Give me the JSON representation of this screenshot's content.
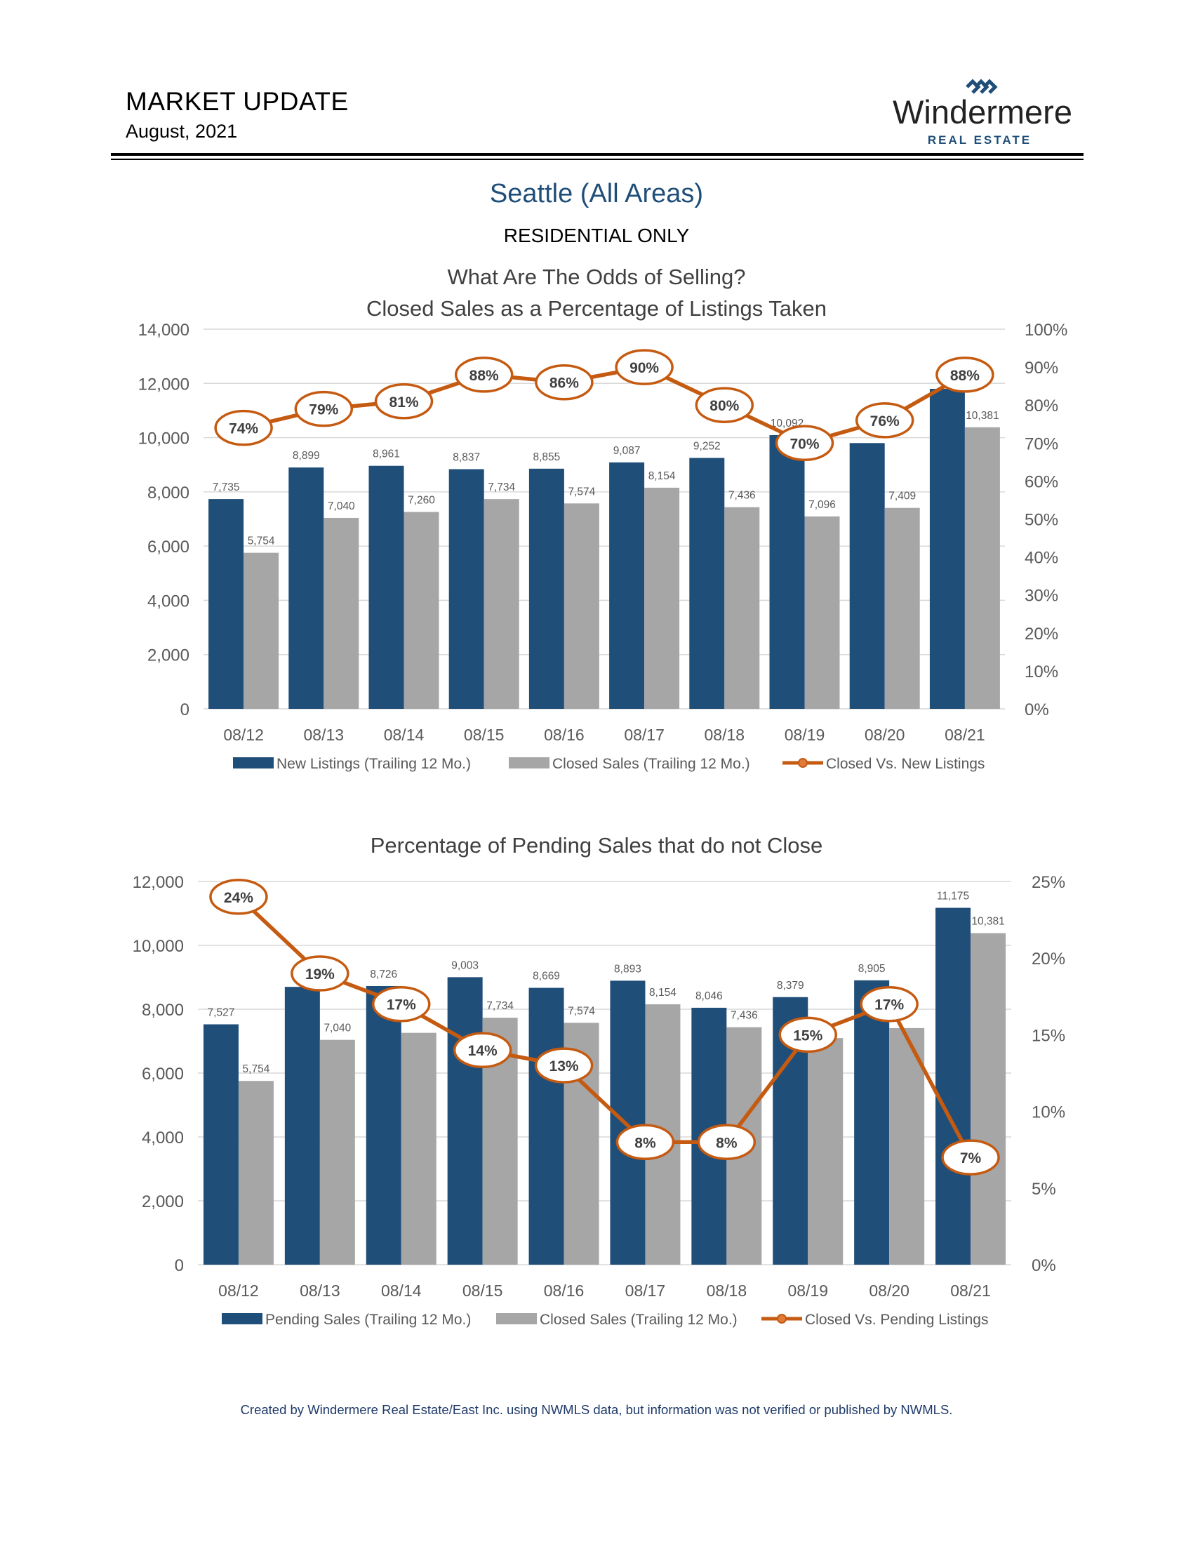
{
  "header": {
    "title": "MARKET UPDATE",
    "date": "August, 2021",
    "logo": {
      "name": "Windermere",
      "tagline": "REAL ESTATE",
      "icon": "windermere-chevron-logo"
    }
  },
  "region": {
    "title": "Seattle (All Areas)",
    "subtitle": "RESIDENTIAL ONLY"
  },
  "colors": {
    "blue": "#1f4e79",
    "gray": "#a6a6a6",
    "orange": "#c55a11",
    "title_blue": "#1f4e79"
  },
  "footer": "Created by Windermere Real Estate/East Inc. using NWMLS data, but information was not verified or published by NWMLS.",
  "chart_data": [
    {
      "type": "bar",
      "title_lines": [
        "What Are The Odds of Selling?",
        "Closed Sales as a Percentage of Listings Taken"
      ],
      "categories": [
        "08/12",
        "08/13",
        "08/14",
        "08/15",
        "08/16",
        "08/17",
        "08/18",
        "08/19",
        "08/20",
        "08/21"
      ],
      "ylim": [
        0,
        14000
      ],
      "yticks": [
        "0",
        "2,000",
        "4,000",
        "6,000",
        "8,000",
        "10,000",
        "12,000",
        "14,000"
      ],
      "y2lim": [
        0,
        100
      ],
      "y2ticks": [
        "0%",
        "10%",
        "20%",
        "30%",
        "40%",
        "50%",
        "60%",
        "70%",
        "80%",
        "90%",
        "100%"
      ],
      "legend_position": "bottom",
      "series": [
        {
          "name": "New Listings (Trailing 12 Mo.)",
          "kind": "bar",
          "color": "#1f4e79",
          "values": [
            7735,
            8899,
            8961,
            8837,
            8855,
            9087,
            9252,
            10092,
            9800,
            11800
          ],
          "labels": [
            "7,735",
            "8,899",
            "8,961",
            "8,837",
            "8,855",
            "9,087",
            "9,252",
            "10,092",
            "",
            ""
          ]
        },
        {
          "name": "Closed Sales (Trailing 12 Mo.)",
          "kind": "bar",
          "color": "#a6a6a6",
          "values": [
            5754,
            7040,
            7260,
            7734,
            7574,
            8154,
            7436,
            7096,
            7409,
            10381
          ],
          "labels": [
            "5,754",
            "7,040",
            "7,260",
            "7,734",
            "7,574",
            "8,154",
            "7,436",
            "7,096",
            "7,409",
            "10,381"
          ]
        },
        {
          "name": "Closed Vs. New Listings",
          "kind": "line",
          "axis": "right",
          "color": "#c55a11",
          "values": [
            74,
            79,
            81,
            88,
            86,
            90,
            80,
            70,
            76,
            88
          ],
          "labels": [
            "74%",
            "79%",
            "81%",
            "88%",
            "86%",
            "90%",
            "80%",
            "70%",
            "76%",
            "88%"
          ]
        }
      ]
    },
    {
      "type": "bar",
      "title_lines": [
        "Percentage of Pending Sales that do not Close"
      ],
      "categories": [
        "08/12",
        "08/13",
        "08/14",
        "08/15",
        "08/16",
        "08/17",
        "08/18",
        "08/19",
        "08/20",
        "08/21"
      ],
      "ylim": [
        0,
        12000
      ],
      "yticks": [
        "0",
        "2,000",
        "4,000",
        "6,000",
        "8,000",
        "10,000",
        "12,000"
      ],
      "y2lim": [
        0,
        25
      ],
      "y2ticks": [
        "0%",
        "5%",
        "10%",
        "15%",
        "20%",
        "25%"
      ],
      "legend_position": "bottom",
      "series": [
        {
          "name": "Pending Sales (Trailing 12 Mo.)",
          "kind": "bar",
          "color": "#1f4e79",
          "values": [
            7527,
            8700,
            8726,
            9003,
            8669,
            8893,
            8046,
            8379,
            8905,
            11175
          ],
          "labels": [
            "7,527",
            "",
            "8,726",
            "9,003",
            "8,669",
            "8,893",
            "8,046",
            "8,379",
            "8,905",
            "11,175"
          ]
        },
        {
          "name": "Closed Sales (Trailing 12 Mo.)",
          "kind": "bar",
          "color": "#a6a6a6",
          "values": [
            5754,
            7040,
            7260,
            7734,
            7574,
            8154,
            7436,
            7096,
            7409,
            10381
          ],
          "labels": [
            "5,754",
            "7,040",
            "",
            "7,734",
            "7,574",
            "8,154",
            "7,436",
            "",
            "",
            "10,381"
          ]
        },
        {
          "name": "Closed Vs. Pending Listings",
          "kind": "line",
          "axis": "right",
          "color": "#c55a11",
          "values": [
            24,
            19,
            17,
            14,
            13,
            8,
            8,
            15,
            17,
            7
          ],
          "labels": [
            "24%",
            "19%",
            "17%",
            "14%",
            "13%",
            "8%",
            "8%",
            "15%",
            "17%",
            "7%"
          ]
        }
      ]
    }
  ]
}
